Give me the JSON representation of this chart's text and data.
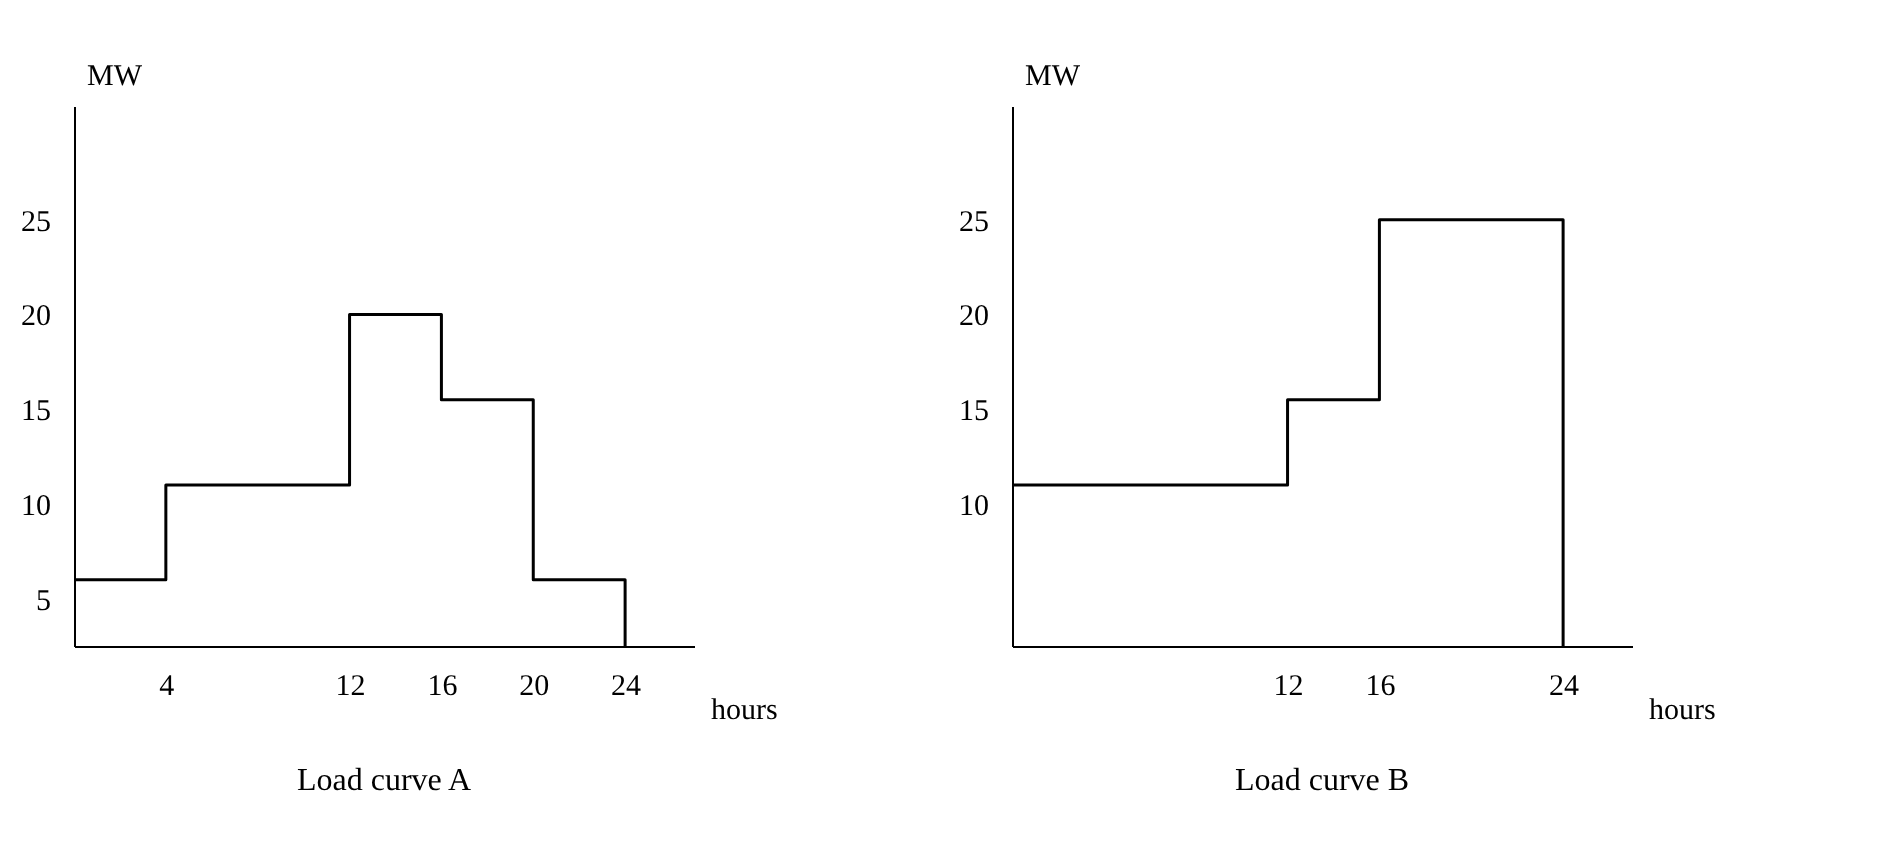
{
  "chart_data": [
    {
      "type": "step",
      "title": "Load curve A",
      "xlabel": "hours",
      "ylabel": "MW",
      "x": [
        0,
        4,
        12,
        16,
        20,
        24,
        24
      ],
      "values": [
        6,
        11,
        20,
        15.5,
        6,
        6,
        2.5
      ],
      "color": "#000000",
      "xlim": [
        0,
        27
      ],
      "xticks": [
        4,
        12,
        16,
        20,
        24
      ],
      "ylim": [
        2.5,
        31
      ],
      "yticks": [
        5,
        10,
        15,
        20,
        25
      ],
      "grid": false,
      "legend": false
    },
    {
      "type": "step",
      "title": "Load curve B",
      "xlabel": "hours",
      "ylabel": "MW",
      "x": [
        0,
        12,
        16,
        24,
        24
      ],
      "values": [
        11,
        15.5,
        25,
        25,
        2.5
      ],
      "color": "#000000",
      "xlim": [
        0,
        27
      ],
      "xticks": [
        12,
        16,
        24
      ],
      "ylim": [
        2.5,
        31
      ],
      "yticks": [
        10,
        15,
        20,
        25
      ],
      "grid": false,
      "legend": false
    }
  ]
}
